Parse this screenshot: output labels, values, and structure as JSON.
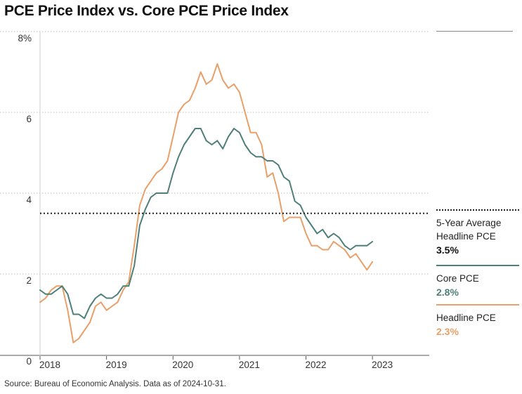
{
  "title": "PCE Price Index vs. Core PCE Price Index",
  "source": "Source: Bureau of Economic Analysis. Data as of 2024-10-31.",
  "legend": {
    "average": {
      "label_line1": "5-Year Average",
      "label_line2": "Headline PCE",
      "value": "3.5%"
    },
    "core": {
      "label": "Core PCE",
      "value": "2.8%",
      "color": "#4e7f79"
    },
    "headline": {
      "label": "Headline PCE",
      "value": "2.3%",
      "color": "#e8a06a"
    }
  },
  "chart_data": {
    "type": "line",
    "x_start": "2018-01",
    "x_frequency": "monthly",
    "xlim": [
      "2018-01",
      "2023-11"
    ],
    "ylim": [
      0,
      8
    ],
    "y_ticks": [
      {
        "value": 0,
        "label": "0"
      },
      {
        "value": 2,
        "label": "2"
      },
      {
        "value": 4,
        "label": "4"
      },
      {
        "value": 6,
        "label": "6"
      },
      {
        "value": 8,
        "label": "8%"
      }
    ],
    "x_ticks": [
      {
        "date": "2018-01",
        "label": "2018"
      },
      {
        "date": "2019-01",
        "label": "2019"
      },
      {
        "date": "2020-01",
        "label": "2020"
      },
      {
        "date": "2021-01",
        "label": "2021"
      },
      {
        "date": "2022-01",
        "label": "2022"
      },
      {
        "date": "2023-01",
        "label": "2023"
      }
    ],
    "reference_line": {
      "value": 3.5,
      "style": "dotted"
    },
    "grid": "horizontal dotted",
    "series": [
      {
        "name": "Core PCE",
        "color": "#4e7f79",
        "values": [
          1.6,
          1.5,
          1.5,
          1.6,
          1.7,
          1.5,
          1.0,
          1.0,
          0.9,
          1.2,
          1.4,
          1.5,
          1.4,
          1.4,
          1.5,
          1.7,
          1.7,
          2.2,
          3.2,
          3.6,
          3.9,
          4.0,
          4.0,
          4.0,
          4.5,
          4.9,
          5.2,
          5.4,
          5.6,
          5.6,
          5.3,
          5.2,
          5.3,
          5.1,
          5.4,
          5.6,
          5.5,
          5.2,
          5.0,
          4.9,
          4.9,
          4.8,
          4.8,
          4.7,
          4.4,
          4.3,
          3.8,
          3.7,
          3.4,
          3.2,
          3.0,
          3.1,
          2.9,
          3.0,
          2.9,
          2.7,
          2.6,
          2.7,
          2.7,
          2.7,
          2.8
        ]
      },
      {
        "name": "Headline PCE",
        "color": "#e8a06a",
        "values": [
          1.3,
          1.4,
          1.6,
          1.7,
          1.7,
          1.1,
          0.3,
          0.4,
          0.6,
          0.8,
          1.2,
          1.3,
          1.1,
          1.2,
          1.3,
          1.6,
          1.8,
          2.7,
          3.7,
          4.1,
          4.3,
          4.5,
          4.6,
          4.8,
          5.4,
          6.0,
          6.2,
          6.3,
          6.6,
          7.0,
          6.7,
          6.8,
          7.2,
          6.8,
          6.6,
          6.7,
          6.5,
          6.0,
          5.5,
          5.5,
          5.2,
          4.4,
          4.5,
          4.0,
          3.3,
          3.4,
          3.4,
          3.4,
          3.0,
          2.7,
          2.7,
          2.6,
          2.6,
          2.8,
          2.7,
          2.6,
          2.4,
          2.5,
          2.3,
          2.1,
          2.3
        ]
      }
    ]
  }
}
